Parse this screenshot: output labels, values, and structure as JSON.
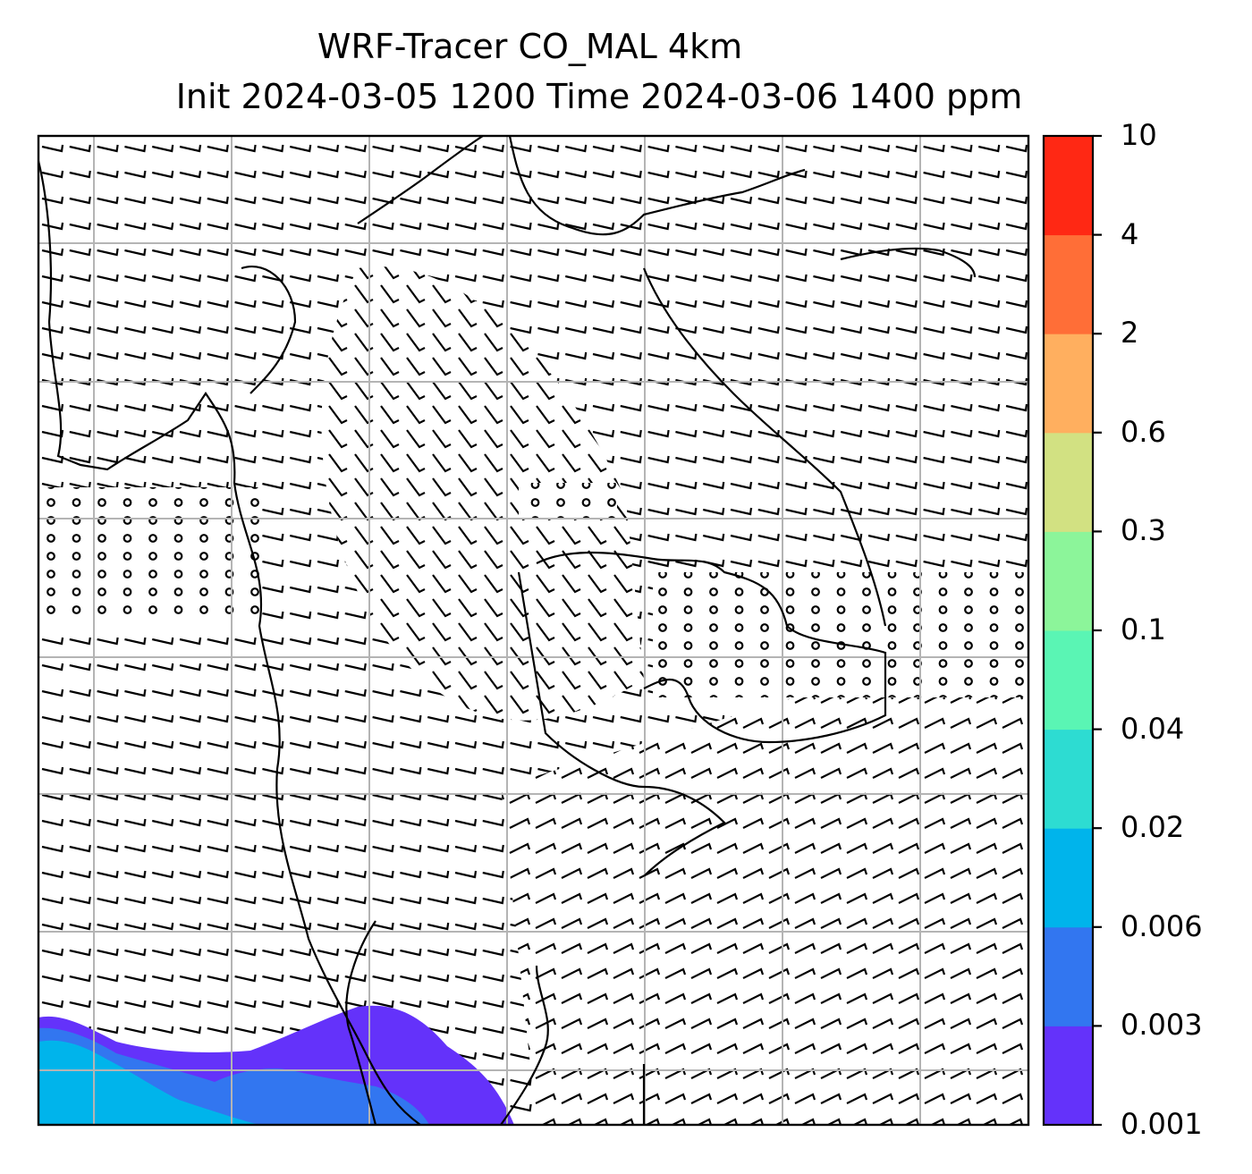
{
  "title": {
    "line1": "WRF-Tracer CO_MAL 4km",
    "line2": "Init 2024-03-05 1200 Time 2024-03-06 1400 ppm"
  },
  "colorbar": {
    "levels": [
      "0.001",
      "0.003",
      "0.006",
      "0.02",
      "0.04",
      "0.1",
      "0.3",
      "0.6",
      "2",
      "4",
      "10"
    ],
    "colors": [
      "#6432fa",
      "#3276f0",
      "#00b4eb",
      "#2ddcd2",
      "#5af5b4",
      "#8cf59a",
      "#d2e182",
      "#ffaf5f",
      "#ff6e37",
      "#ff2814"
    ]
  },
  "map": {
    "coastline_color": "#000000",
    "gridline_color": "#b4b4b4",
    "barb_color": "#000000",
    "legend_position": "right"
  }
}
